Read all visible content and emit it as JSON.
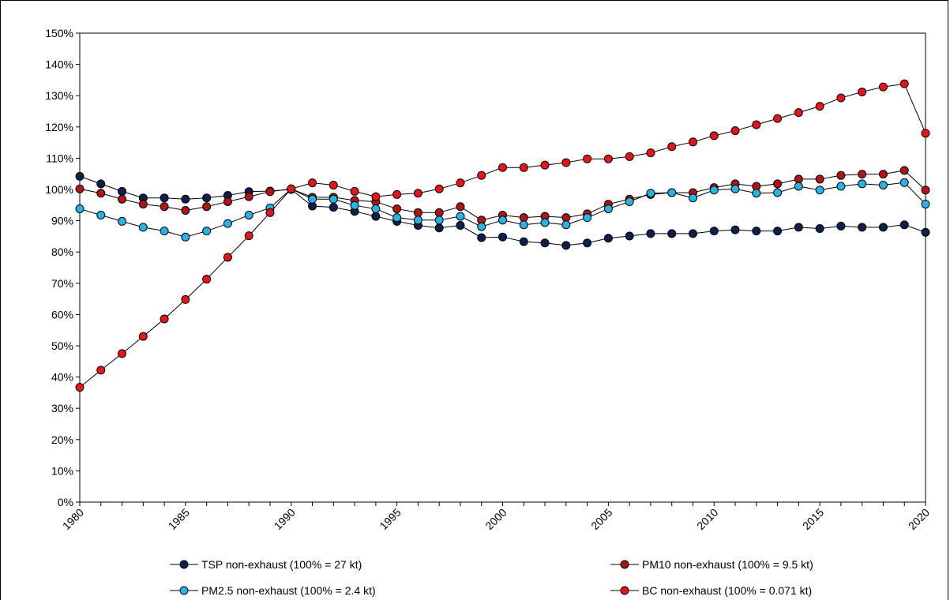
{
  "chart_data": {
    "type": "line",
    "title": "",
    "xlabel": "",
    "ylabel": "",
    "x": [
      1980,
      1981,
      1982,
      1983,
      1984,
      1985,
      1986,
      1987,
      1988,
      1989,
      1990,
      1991,
      1992,
      1993,
      1994,
      1995,
      1996,
      1997,
      1998,
      1999,
      2000,
      2001,
      2002,
      2003,
      2004,
      2005,
      2006,
      2007,
      2008,
      2009,
      2010,
      2011,
      2012,
      2013,
      2014,
      2015,
      2016,
      2017,
      2018,
      2019,
      2020
    ],
    "xlim": [
      1980,
      2020
    ],
    "xticks": [
      1980,
      1985,
      1990,
      1995,
      2000,
      2005,
      2010,
      2015,
      2020
    ],
    "xtick_labels": [
      "1980",
      "1985",
      "1990",
      "1995",
      "2000",
      "2005",
      "2010",
      "2015",
      "2020"
    ],
    "ylim": [
      0,
      150
    ],
    "yticks": [
      0,
      10,
      20,
      30,
      40,
      50,
      60,
      70,
      80,
      90,
      100,
      110,
      120,
      130,
      140,
      150
    ],
    "ytick_labels": [
      "0%",
      "10%",
      "20%",
      "30%",
      "40%",
      "50%",
      "60%",
      "70%",
      "80%",
      "90%",
      "100%",
      "110%",
      "120%",
      "130%",
      "140%",
      "150%"
    ],
    "grid": false,
    "legend_position": "bottom",
    "series": [
      {
        "name": "TSP non-exhaust (100% = 27 kt)",
        "color": "#0d1f4f",
        "values": [
          104.2,
          101.8,
          99.4,
          97.3,
          97.3,
          96.9,
          97.3,
          98.1,
          99.3,
          99.5,
          100.0,
          94.7,
          94.3,
          93.0,
          91.4,
          89.8,
          88.5,
          87.7,
          88.5,
          84.6,
          84.8,
          83.3,
          82.9,
          82.1,
          82.9,
          84.4,
          85.1,
          85.9,
          85.9,
          85.9,
          86.7,
          87.1,
          86.7,
          86.7,
          87.9,
          87.5,
          88.3,
          87.9,
          87.9,
          88.7,
          86.3
        ]
      },
      {
        "name": "PM10 non-exhaust (100% = 9.5 kt)",
        "color": "#b01515",
        "values": [
          100.2,
          98.8,
          96.9,
          95.3,
          94.5,
          93.3,
          94.5,
          96.1,
          97.7,
          99.3,
          100.2,
          97.5,
          97.5,
          96.5,
          96.1,
          93.8,
          92.6,
          92.6,
          94.5,
          90.2,
          91.8,
          91.0,
          91.4,
          91.0,
          92.2,
          95.3,
          96.9,
          98.4,
          99.0,
          99.0,
          100.6,
          101.8,
          101.0,
          101.8,
          103.3,
          103.3,
          104.5,
          104.9,
          104.9,
          106.1,
          99.8
        ]
      },
      {
        "name": "PM2.5 non-exhaust (100% = 2.4 kt)",
        "color": "#27b3e6",
        "values": [
          93.8,
          91.8,
          89.8,
          87.9,
          86.7,
          84.8,
          86.7,
          89.1,
          91.8,
          94.1,
          100.2,
          96.9,
          96.9,
          94.9,
          93.8,
          91.0,
          90.2,
          90.2,
          91.4,
          88.1,
          90.2,
          88.7,
          89.4,
          88.7,
          91.0,
          93.8,
          96.1,
          98.8,
          99.0,
          97.3,
          99.8,
          100.2,
          98.8,
          99.0,
          101.0,
          99.8,
          101.0,
          101.8,
          101.4,
          102.2,
          95.3
        ]
      },
      {
        "name": "BC non-exhaust (100% = 0.071 kt)",
        "color": "#e8141a",
        "values": [
          36.7,
          42.2,
          47.5,
          53.0,
          58.6,
          64.8,
          71.3,
          78.3,
          85.2,
          92.6,
          100.2,
          102.1,
          101.4,
          99.4,
          97.7,
          98.4,
          98.8,
          100.2,
          102.1,
          104.5,
          107.0,
          107.0,
          107.8,
          108.6,
          109.8,
          109.8,
          110.5,
          111.7,
          113.7,
          115.2,
          117.2,
          118.8,
          120.7,
          122.7,
          124.6,
          126.6,
          129.3,
          131.2,
          132.8,
          133.8,
          118.0
        ]
      }
    ]
  }
}
